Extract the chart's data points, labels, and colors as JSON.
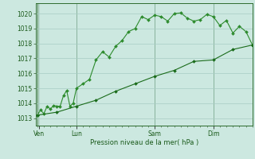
{
  "bg_color": "#cce8e0",
  "grid_color": "#a8ccc4",
  "line_color1": "#1a6b1a",
  "line_color2": "#2d8b2d",
  "title": "Pression niveau de la mer( hPa )",
  "xlabel_days": [
    "Ven",
    "Lun",
    "Sam",
    "Dim"
  ],
  "xlabel_day_x": [
    0.5,
    12,
    36,
    54
  ],
  "vline_x": [
    0,
    12,
    36,
    54
  ],
  "ylim": [
    1012.5,
    1020.7
  ],
  "yticks": [
    1013,
    1014,
    1015,
    1016,
    1017,
    1018,
    1019,
    1020
  ],
  "xlim": [
    -0.5,
    66
  ],
  "series1_x": [
    0,
    1,
    2,
    3,
    4,
    5,
    6,
    7,
    8,
    9,
    10,
    11,
    12,
    14,
    16,
    18,
    20,
    22,
    24,
    26,
    28,
    30,
    32,
    34,
    36,
    38,
    40,
    42,
    44,
    46,
    48,
    50,
    52,
    54,
    56,
    58,
    60,
    62,
    64,
    66
  ],
  "series1_y": [
    1013.2,
    1013.55,
    1013.3,
    1013.8,
    1013.6,
    1013.85,
    1013.8,
    1013.8,
    1014.5,
    1014.85,
    1013.8,
    1014.0,
    1015.0,
    1015.3,
    1015.6,
    1016.9,
    1017.45,
    1017.1,
    1017.8,
    1018.2,
    1018.8,
    1019.0,
    1019.8,
    1019.6,
    1019.9,
    1019.8,
    1019.5,
    1020.0,
    1020.05,
    1019.7,
    1019.5,
    1019.6,
    1019.95,
    1019.8,
    1019.2,
    1019.55,
    1018.7,
    1019.15,
    1018.8,
    1017.9
  ],
  "series2_x": [
    0,
    6,
    12,
    18,
    24,
    30,
    36,
    42,
    48,
    54,
    60,
    66
  ],
  "series2_y": [
    1013.2,
    1013.4,
    1013.8,
    1014.2,
    1014.8,
    1015.3,
    1015.8,
    1016.2,
    1016.8,
    1016.9,
    1017.6,
    1017.9
  ]
}
